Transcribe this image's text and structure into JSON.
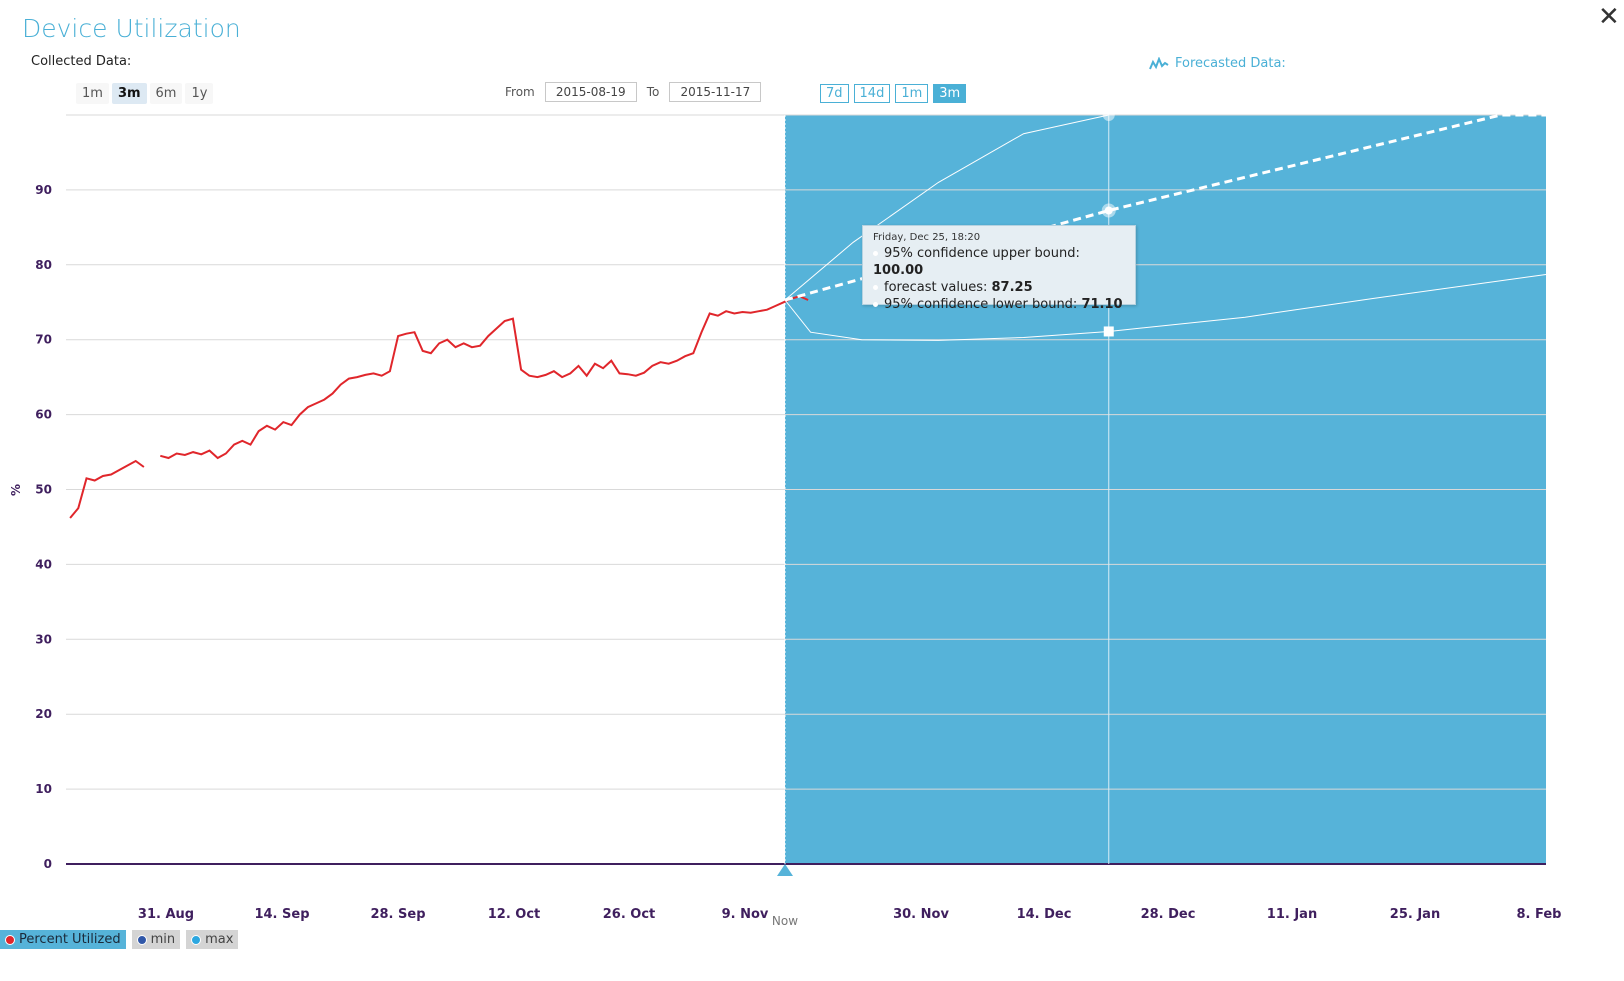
{
  "title": "Device Utilization",
  "collected_label": "Collected Data:",
  "forecast_label": "Forecasted Data:",
  "range_buttons": [
    "1m",
    "3m",
    "6m",
    "1y"
  ],
  "range_selected": "3m",
  "from_label": "From",
  "to_label": "To",
  "from_value": "2015-08-19",
  "to_value": "2015-11-17",
  "forecast_buttons": [
    "7d",
    "14d",
    "1m",
    "3m"
  ],
  "forecast_selected": "3m",
  "colors": {
    "title": "#4ab0d6",
    "forecast_area": "#56b3d9",
    "series": "#e0262b",
    "axis": "#3f1f5e"
  },
  "tooltip": {
    "date": "Friday, Dec 25, 18:20",
    "rows": [
      {
        "label": "95% confidence upper bound: ",
        "value": "100.00"
      },
      {
        "label": "forecast values: ",
        "value": "87.25"
      },
      {
        "label": "95% confidence lower bound: ",
        "value": "71.10"
      }
    ]
  },
  "legend": [
    {
      "label": "Percent Utilized",
      "color": "#e0262b",
      "active": true
    },
    {
      "label": "min",
      "color": "#3057a8",
      "active": false
    },
    {
      "label": "max",
      "color": "#2ca7e0",
      "active": false
    }
  ],
  "chart_data": {
    "type": "line",
    "title": "",
    "xlabel": "",
    "ylabel": "%",
    "ylim": [
      0,
      100
    ],
    "yticks": [
      0,
      10,
      20,
      30,
      40,
      50,
      60,
      70,
      80,
      90
    ],
    "xticks": [
      "31. Aug",
      "14. Sep",
      "28. Sep",
      "12. Oct",
      "26. Oct",
      "9. Nov",
      "30. Nov",
      "14. Dec",
      "28. Dec",
      "11. Jan",
      "25. Jan",
      "8. Feb"
    ],
    "now_label": "Now",
    "now_date": "2015-11-17",
    "grid": true,
    "legend_position": "bottom-left",
    "series": [
      {
        "name": "Percent Utilized",
        "x": [
          "2015-08-19",
          "2015-08-20",
          "2015-08-21",
          "2015-08-22",
          "2015-08-23",
          "2015-08-24",
          "2015-08-25",
          "2015-08-26",
          "2015-08-27",
          "2015-08-28",
          "2015-08-30",
          "2015-08-31",
          "2015-09-01",
          "2015-09-02",
          "2015-09-03",
          "2015-09-04",
          "2015-09-05",
          "2015-09-06",
          "2015-09-07",
          "2015-09-08",
          "2015-09-09",
          "2015-09-10",
          "2015-09-11",
          "2015-09-12",
          "2015-09-13",
          "2015-09-14",
          "2015-09-15",
          "2015-09-16",
          "2015-09-17",
          "2015-09-18",
          "2015-09-19",
          "2015-09-20",
          "2015-09-21",
          "2015-09-22",
          "2015-09-23",
          "2015-09-24",
          "2015-09-25",
          "2015-09-26",
          "2015-09-27",
          "2015-09-28",
          "2015-09-29",
          "2015-09-30",
          "2015-10-01",
          "2015-10-02",
          "2015-10-03",
          "2015-10-04",
          "2015-10-05",
          "2015-10-06",
          "2015-10-07",
          "2015-10-08",
          "2015-10-09",
          "2015-10-10",
          "2015-10-11",
          "2015-10-12",
          "2015-10-13",
          "2015-10-14",
          "2015-10-15",
          "2015-10-16",
          "2015-10-17",
          "2015-10-18",
          "2015-10-19",
          "2015-10-20",
          "2015-10-21",
          "2015-10-22",
          "2015-10-23",
          "2015-10-24",
          "2015-10-25",
          "2015-10-26",
          "2015-10-27",
          "2015-10-28",
          "2015-10-29",
          "2015-10-30",
          "2015-10-31",
          "2015-11-01",
          "2015-11-02",
          "2015-11-03",
          "2015-11-04",
          "2015-11-05",
          "2015-11-06",
          "2015-11-07",
          "2015-11-08",
          "2015-11-09",
          "2015-11-10",
          "2015-11-11",
          "2015-11-12",
          "2015-11-13",
          "2015-11-14",
          "2015-11-15",
          "2015-11-16",
          "2015-11-17"
        ],
        "values": [
          46.2,
          47.5,
          51.5,
          51.2,
          51.8,
          52.0,
          52.6,
          53.2,
          53.8,
          53.0,
          54.5,
          54.2,
          54.8,
          54.6,
          55.0,
          54.7,
          55.2,
          54.2,
          54.8,
          56.0,
          56.5,
          56.0,
          57.8,
          58.5,
          58.0,
          59.0,
          58.6,
          60.0,
          61.0,
          61.5,
          62.0,
          62.8,
          64.0,
          64.8,
          65.0,
          65.3,
          65.5,
          65.2,
          65.8,
          70.5,
          70.8,
          71.0,
          68.5,
          68.2,
          69.5,
          70.0,
          69.0,
          69.5,
          69.0,
          69.2,
          70.5,
          71.5,
          72.5,
          72.8,
          66.0,
          65.2,
          65.0,
          65.3,
          65.8,
          65.0,
          65.5,
          66.5,
          65.2,
          66.8,
          66.2,
          67.2,
          65.5,
          65.4,
          65.2,
          65.6,
          66.5,
          67.0,
          66.8,
          67.2,
          67.8,
          68.2,
          71.0,
          73.5,
          73.2,
          73.8,
          73.5,
          73.7,
          73.6,
          73.8,
          74.0,
          74.5,
          75.0,
          75.5,
          75.8,
          75.3
        ]
      },
      {
        "name": "forecast values",
        "x": [
          "2015-11-17",
          "2015-12-25",
          "2016-02-09",
          "2016-02-15"
        ],
        "values": [
          75.3,
          87.25,
          100,
          100
        ]
      },
      {
        "name": "95% confidence upper bound",
        "x": [
          "2015-11-17",
          "2015-11-25",
          "2015-12-05",
          "2015-12-15",
          "2015-12-25"
        ],
        "values": [
          75.3,
          83.0,
          91.0,
          97.5,
          100
        ]
      },
      {
        "name": "95% confidence lower bound",
        "x": [
          "2015-11-17",
          "2015-11-20",
          "2015-11-26",
          "2015-12-05",
          "2015-12-15",
          "2015-12-25",
          "2016-01-10",
          "2016-01-25",
          "2016-02-15"
        ],
        "values": [
          75.3,
          71.0,
          70.0,
          69.9,
          70.3,
          71.1,
          73.0,
          75.5,
          78.7
        ]
      }
    ],
    "highlight": {
      "x": "2015-12-25",
      "upper": 100.0,
      "forecast": 87.25,
      "lower": 71.1
    }
  }
}
